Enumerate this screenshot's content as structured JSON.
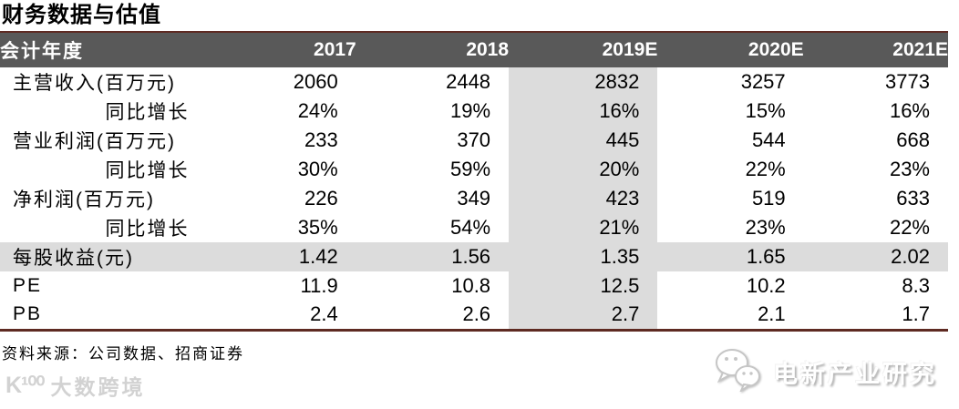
{
  "title": "财务数据与估值",
  "table": {
    "header": {
      "label": "会计年度",
      "years": [
        "2017",
        "2018",
        "2019E",
        "2020E",
        "2021E"
      ]
    },
    "highlight_col_label": "2019E",
    "highlight_col_index": 2,
    "rows": [
      {
        "label": "主营收入(百万元)",
        "indent": false,
        "highlight": false,
        "values": [
          "2060",
          "2448",
          "2832",
          "3257",
          "3773"
        ]
      },
      {
        "label": "同比增长",
        "indent": true,
        "highlight": false,
        "values": [
          "24%",
          "19%",
          "16%",
          "15%",
          "16%"
        ]
      },
      {
        "label": "营业利润(百万元)",
        "indent": false,
        "highlight": false,
        "values": [
          "233",
          "370",
          "445",
          "544",
          "668"
        ]
      },
      {
        "label": "同比增长",
        "indent": true,
        "highlight": false,
        "values": [
          "30%",
          "59%",
          "20%",
          "22%",
          "23%"
        ]
      },
      {
        "label": "净利润(百万元)",
        "indent": false,
        "highlight": false,
        "values": [
          "226",
          "349",
          "423",
          "519",
          "633"
        ]
      },
      {
        "label": "同比增长",
        "indent": true,
        "highlight": false,
        "values": [
          "35%",
          "54%",
          "21%",
          "23%",
          "22%"
        ]
      },
      {
        "label": "每股收益(元)",
        "indent": false,
        "highlight": true,
        "values": [
          "1.42",
          "1.56",
          "1.35",
          "1.65",
          "2.02"
        ]
      },
      {
        "label": "PE",
        "indent": false,
        "highlight": false,
        "values": [
          "11.9",
          "10.8",
          "12.5",
          "10.2",
          "8.3"
        ]
      },
      {
        "label": "PB",
        "indent": false,
        "highlight": false,
        "values": [
          "2.4",
          "2.6",
          "2.7",
          "2.1",
          "1.7"
        ]
      }
    ]
  },
  "source_note": "资料来源：公司数据、招商证券",
  "watermarks": {
    "left_logo_icon": "kua100-logo",
    "left_logo_glyph": "K¹⁰⁰",
    "left_text": "大数跨境",
    "right_icon": "wechat-chat-bubbles",
    "right_text": "电新产业研究"
  },
  "colors": {
    "accent_line": "#5e2a22",
    "header_bg": "#595959",
    "header_text": "#ffffff",
    "highlight_bg": "#dcdcdc",
    "watermark_gray": "#d2d2d2"
  }
}
